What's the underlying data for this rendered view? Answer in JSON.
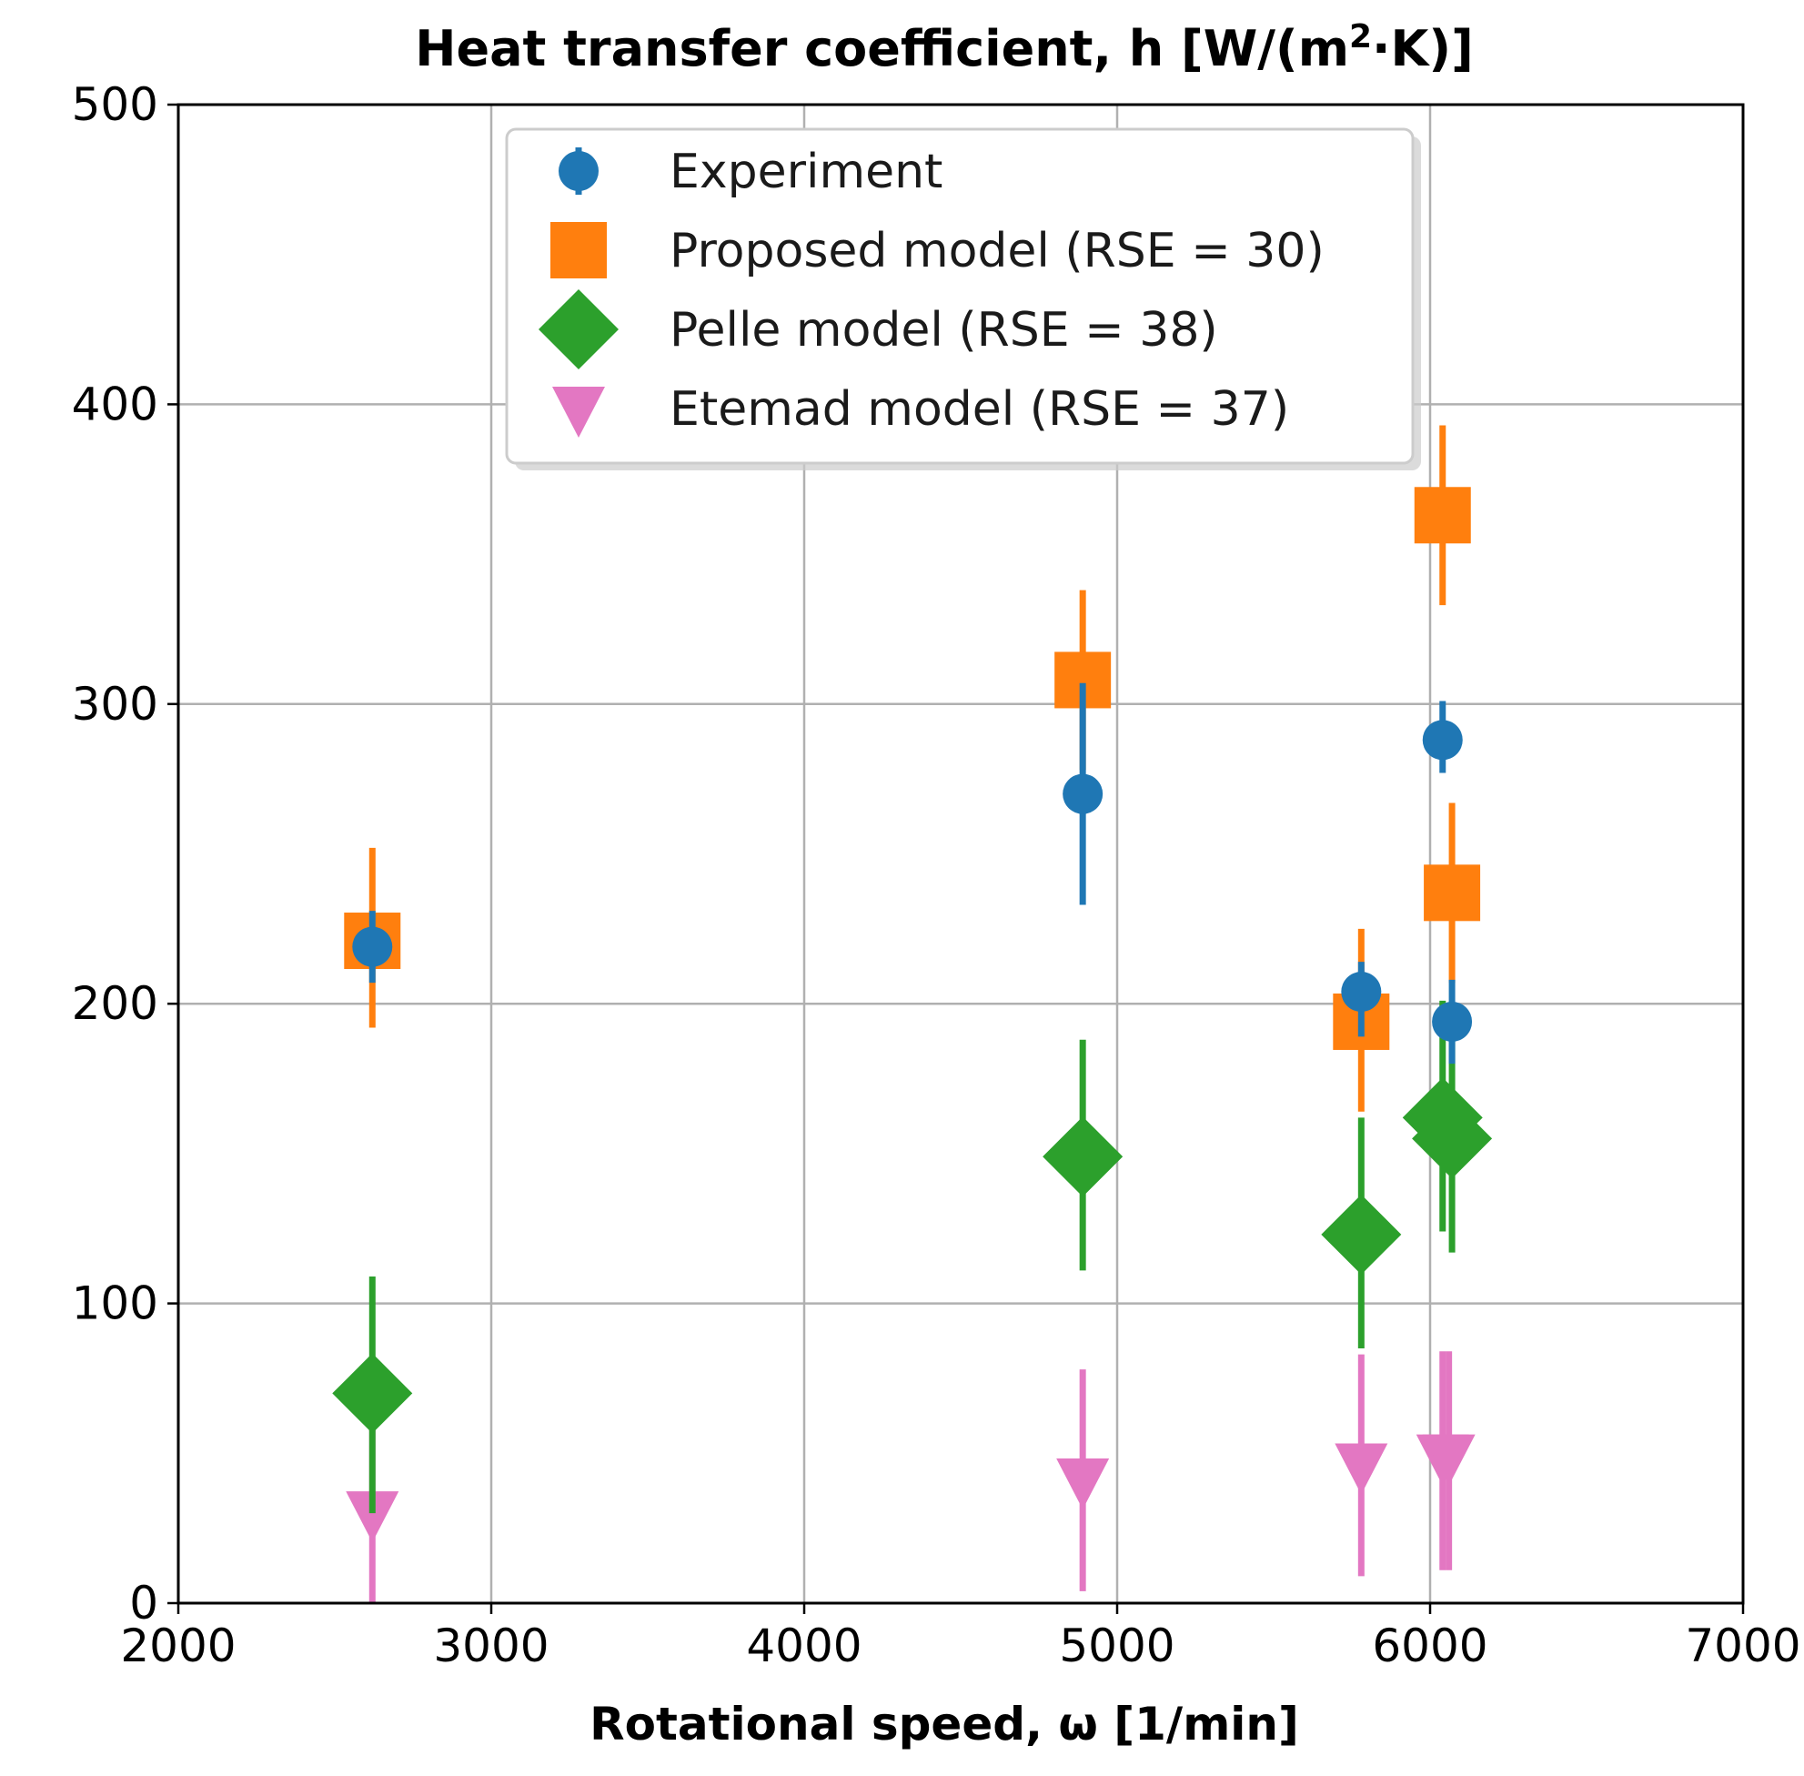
{
  "chart_data": {
    "type": "scatter",
    "title_main": "Heat transfer coefficient, h [W/(m",
    "title_sup": "2",
    "title_tail": "·K)]",
    "xlabel": "Rotational speed, ω [1/min]",
    "ylabel": "",
    "xlim": [
      2000,
      7000
    ],
    "ylim": [
      0,
      500
    ],
    "xticks": [
      "2000",
      "3000",
      "4000",
      "5000",
      "6000",
      "7000"
    ],
    "yticks": [
      "0",
      "100",
      "200",
      "300",
      "400",
      "500"
    ],
    "grid": true,
    "legend_position": "top-center",
    "series": [
      {
        "name": "Experiment",
        "marker": "circle",
        "color": "#1f77b4",
        "points": [
          {
            "x": 2620,
            "y": 219,
            "lo": 207,
            "hi": 231
          },
          {
            "x": 4890,
            "y": 270,
            "lo": 233,
            "hi": 307
          },
          {
            "x": 5780,
            "y": 204,
            "lo": 189,
            "hi": 214
          },
          {
            "x": 6040,
            "y": 288,
            "lo": 277,
            "hi": 301
          },
          {
            "x": 6070,
            "y": 194,
            "lo": 180,
            "hi": 208
          }
        ]
      },
      {
        "name": "Proposed model (RSE = 30)",
        "marker": "square",
        "color": "#ff7f0e",
        "points": [
          {
            "x": 2620,
            "y": 221,
            "lo": 192,
            "hi": 252
          },
          {
            "x": 4890,
            "y": 308,
            "lo": 278,
            "hi": 338
          },
          {
            "x": 5780,
            "y": 194,
            "lo": 164,
            "hi": 225
          },
          {
            "x": 6040,
            "y": 363,
            "lo": 333,
            "hi": 393
          },
          {
            "x": 6070,
            "y": 237,
            "lo": 207,
            "hi": 267
          }
        ]
      },
      {
        "name": "Pelle model (RSE = 38)",
        "marker": "diamond",
        "color": "#2ca02c",
        "points": [
          {
            "x": 2620,
            "y": 70,
            "lo": 30,
            "hi": 109
          },
          {
            "x": 4890,
            "y": 149,
            "lo": 111,
            "hi": 188
          },
          {
            "x": 5780,
            "y": 123,
            "lo": 85,
            "hi": 162
          },
          {
            "x": 6040,
            "y": 162,
            "lo": 124,
            "hi": 201
          },
          {
            "x": 6070,
            "y": 155,
            "lo": 117,
            "hi": 194
          }
        ]
      },
      {
        "name": "Etemad model (RSE = 37)",
        "marker": "triangle-down",
        "color": "#e377c2",
        "points": [
          {
            "x": 2620,
            "y": 30,
            "lo": 0,
            "hi": 58
          },
          {
            "x": 4890,
            "y": 41,
            "lo": 4,
            "hi": 78
          },
          {
            "x": 5780,
            "y": 46,
            "lo": 9,
            "hi": 83
          },
          {
            "x": 6040,
            "y": 49,
            "lo": 11,
            "hi": 84
          },
          {
            "x": 6060,
            "y": 49,
            "lo": 11,
            "hi": 84
          }
        ]
      }
    ]
  }
}
